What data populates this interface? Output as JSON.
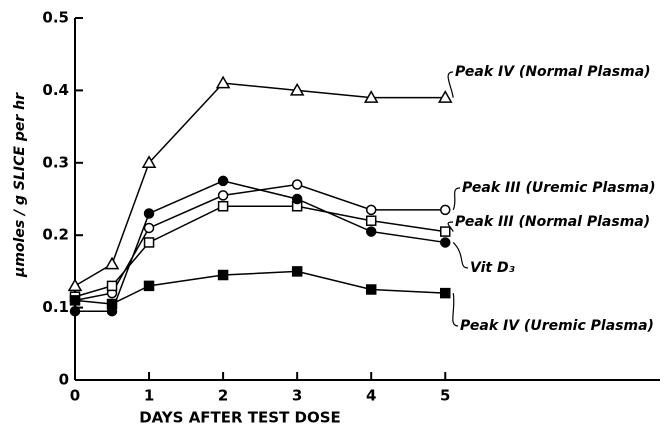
{
  "chart_data": {
    "type": "line",
    "x_label": "DAYS AFTER TEST DOSE",
    "y_label": "μmoles / g SLICE per hr",
    "x": [
      0,
      0.5,
      1,
      2,
      3,
      4,
      5
    ],
    "xlim": [
      0,
      7.9
    ],
    "xticks": [
      0,
      1,
      2,
      3,
      4,
      5
    ],
    "ylim": [
      0,
      0.5
    ],
    "yticks": [
      0,
      0.1,
      0.2,
      0.3,
      0.4,
      0.5
    ],
    "series": [
      {
        "name": "Peak IV (Normal Plasma)",
        "color": "#000000",
        "marker": "triangle-open",
        "values": [
          0.13,
          0.16,
          0.3,
          0.41,
          0.4,
          0.39,
          0.39
        ]
      },
      {
        "name": "Peak III (Uremic Plasma)",
        "color": "#000000",
        "marker": "circle-open",
        "values": [
          0.11,
          0.12,
          0.21,
          0.255,
          0.27,
          0.235,
          0.235
        ]
      },
      {
        "name": "Peak III (Normal Plasma)",
        "color": "#000000",
        "marker": "square-open",
        "values": [
          0.115,
          0.13,
          0.19,
          0.24,
          0.24,
          0.22,
          0.205
        ]
      },
      {
        "name": "Vit D₃",
        "color": "#000000",
        "marker": "circle",
        "values": [
          0.095,
          0.095,
          0.23,
          0.275,
          0.25,
          0.205,
          0.19
        ]
      },
      {
        "name": "Peak IV (Uremic Plasma)",
        "color": "#000000",
        "marker": "square",
        "values": [
          0.11,
          0.105,
          0.13,
          0.145,
          0.15,
          0.125,
          0.12
        ]
      }
    ]
  }
}
